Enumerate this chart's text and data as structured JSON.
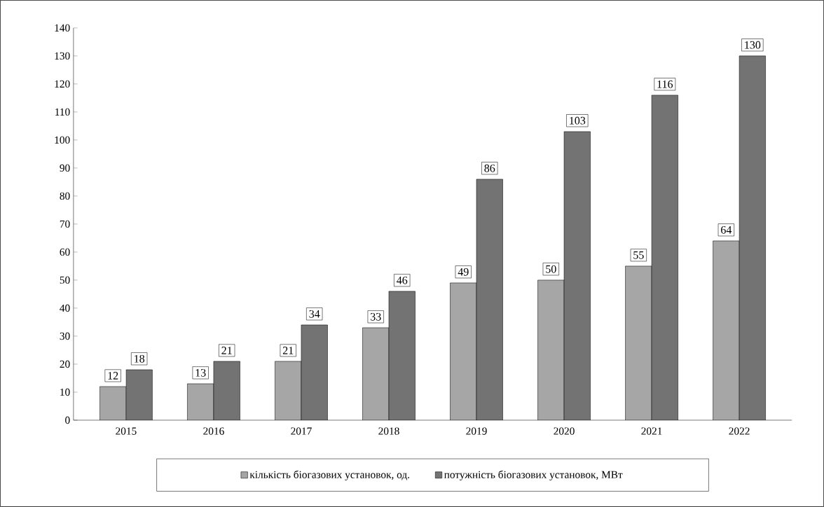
{
  "chart_data": {
    "type": "bar",
    "categories": [
      "2015",
      "2016",
      "2017",
      "2018",
      "2019",
      "2020",
      "2021",
      "2022"
    ],
    "series": [
      {
        "name": "кількість біогазових установок, од.",
        "color": "#a6a6a6",
        "values": [
          12,
          13,
          21,
          33,
          49,
          50,
          55,
          64
        ]
      },
      {
        "name": "потужність біогазових установок, МВт",
        "color": "#737373",
        "values": [
          18,
          21,
          34,
          46,
          86,
          103,
          116,
          130
        ]
      }
    ],
    "ylim": [
      0,
      140
    ],
    "yticks": [
      0,
      10,
      20,
      30,
      40,
      50,
      60,
      70,
      80,
      90,
      100,
      110,
      120,
      130,
      140
    ],
    "data_labels": true,
    "legend": "bottom",
    "grid": false
  }
}
